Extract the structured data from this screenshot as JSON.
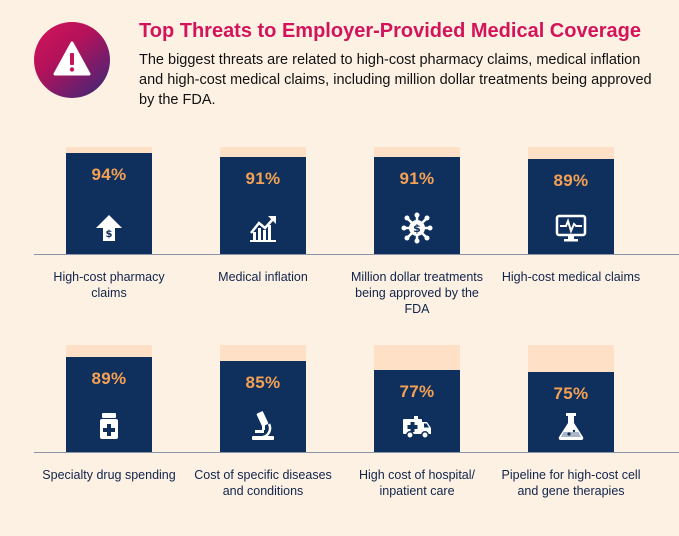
{
  "header": {
    "title": "Top Threats to Employer-Provided Medical Coverage",
    "subtitle": "The biggest threats are related to high-cost pharmacy claims, medical inflation and high-cost medical claims, including million dollar treatments being approved by the FDA."
  },
  "chart_data": {
    "type": "bar",
    "title": "Top Threats to Employer-Provided Medical Coverage",
    "ylim": [
      0,
      100
    ],
    "unit": "%",
    "categories": [
      "High-cost pharmacy claims",
      "Medical inflation",
      "Million dollar treatments being approved by the FDA",
      "High-cost medical claims",
      "Specialty drug spending",
      "Cost of specific diseases and conditions",
      "High cost of hospital/ inpatient care",
      "Pipeline for high-cost cell and gene therapies"
    ],
    "values": [
      94,
      91,
      91,
      89,
      89,
      85,
      77,
      75
    ],
    "value_labels": [
      "94%",
      "91%",
      "91%",
      "89%",
      "89%",
      "85%",
      "77%",
      "75%"
    ],
    "icons": [
      "dollar-up-arrow-icon",
      "rising-chart-icon",
      "dollar-virus-icon",
      "heart-monitor-icon",
      "medicine-bottle-icon",
      "microscope-icon",
      "ambulance-icon",
      "flask-icon"
    ],
    "colors": {
      "bar": "#0f2f5c",
      "bar_track": "#fde0c6",
      "value_text": "#f4a155",
      "title": "#d4145a",
      "background": "#fdf1e4"
    }
  }
}
